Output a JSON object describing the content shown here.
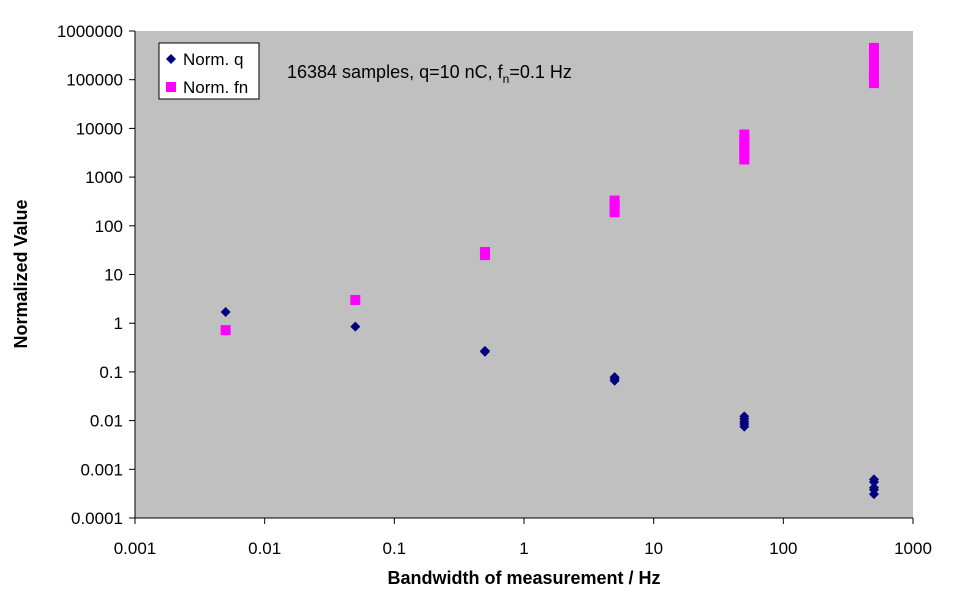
{
  "chart_data": {
    "type": "scatter",
    "xlabel": "Bandwidth of measurement / Hz",
    "ylabel": "Normalized Value",
    "xscale": "log",
    "yscale": "log",
    "xlim": [
      0.001,
      1000
    ],
    "ylim": [
      0.0001,
      1000000
    ],
    "x_tick_labels": [
      "0.001",
      "0.01",
      "0.1",
      "1",
      "10",
      "100",
      "1000"
    ],
    "y_tick_labels": [
      "0.0001",
      "0.001",
      "0.01",
      "0.1",
      "1",
      "10",
      "100",
      "1000",
      "10000",
      "100000",
      "1000000"
    ],
    "annotation": {
      "prefix": "16384 samples, q=10 nC, f",
      "subscript": "n",
      "suffix": "=0.1 Hz"
    },
    "grid": false,
    "plot_background": "#c0c0c0",
    "legend_position": "top-left",
    "series": [
      {
        "name": "Norm. q",
        "marker": "diamond",
        "color": "#000080",
        "points": [
          {
            "x": 0.005,
            "y": 1.7
          },
          {
            "x": 0.05,
            "y": 0.85
          },
          {
            "x": 0.5,
            "y": 0.27
          },
          {
            "x": 0.5,
            "y": 0.26
          },
          {
            "x": 5,
            "y": 0.078
          },
          {
            "x": 5,
            "y": 0.072
          },
          {
            "x": 5,
            "y": 0.066
          },
          {
            "x": 50,
            "y": 0.0122
          },
          {
            "x": 50,
            "y": 0.0108
          },
          {
            "x": 50,
            "y": 0.0095
          },
          {
            "x": 50,
            "y": 0.0085
          },
          {
            "x": 50,
            "y": 0.0075
          },
          {
            "x": 500,
            "y": 0.00062
          },
          {
            "x": 500,
            "y": 0.00055
          },
          {
            "x": 500,
            "y": 0.00042
          },
          {
            "x": 500,
            "y": 0.00038
          },
          {
            "x": 500,
            "y": 0.00031
          }
        ]
      },
      {
        "name": "Norm. fn",
        "marker": "square",
        "color": "#ff00ff",
        "points": [
          {
            "x": 0.005,
            "y": 0.72
          },
          {
            "x": 0.05,
            "y": 3.0
          },
          {
            "x": 0.5,
            "y": 29
          },
          {
            "x": 0.5,
            "y": 25
          },
          {
            "x": 5,
            "y": 330
          },
          {
            "x": 5,
            "y": 270
          },
          {
            "x": 5,
            "y": 220
          },
          {
            "x": 5,
            "y": 190
          },
          {
            "x": 50,
            "y": 7500
          },
          {
            "x": 50,
            "y": 6000
          },
          {
            "x": 50,
            "y": 5000
          },
          {
            "x": 50,
            "y": 4200
          },
          {
            "x": 50,
            "y": 3500
          },
          {
            "x": 50,
            "y": 2800
          },
          {
            "x": 50,
            "y": 2300
          },
          {
            "x": 500,
            "y": 450000
          },
          {
            "x": 500,
            "y": 380000
          },
          {
            "x": 500,
            "y": 320000
          },
          {
            "x": 500,
            "y": 260000
          },
          {
            "x": 500,
            "y": 210000
          },
          {
            "x": 500,
            "y": 170000
          },
          {
            "x": 500,
            "y": 140000
          },
          {
            "x": 500,
            "y": 115000
          },
          {
            "x": 500,
            "y": 95000
          },
          {
            "x": 500,
            "y": 85000
          }
        ]
      }
    ]
  }
}
